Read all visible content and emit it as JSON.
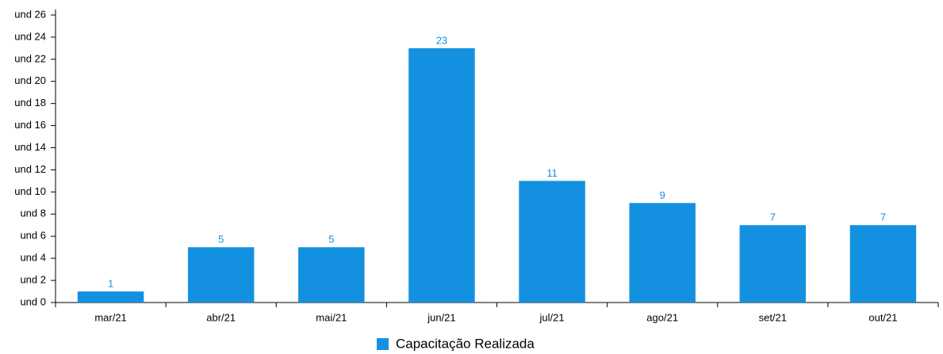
{
  "chart_data": {
    "type": "bar",
    "categories": [
      "mar/21",
      "abr/21",
      "mai/21",
      "jun/21",
      "jul/21",
      "ago/21",
      "set/21",
      "out/21"
    ],
    "series": [
      {
        "name": "Capacitação Realizada",
        "color": "#1391e0",
        "values": [
          1,
          5,
          5,
          23,
          11,
          9,
          7,
          7
        ]
      }
    ],
    "ylim": [
      0,
      26.5
    ],
    "yticks": [
      {
        "value": 0,
        "label": "und 0"
      },
      {
        "value": 2,
        "label": "und 2"
      },
      {
        "value": 4,
        "label": "und 4"
      },
      {
        "value": 6,
        "label": "und 6"
      },
      {
        "value": 8,
        "label": "und 8"
      },
      {
        "value": 10,
        "label": "und 10"
      },
      {
        "value": 12,
        "label": "und 12"
      },
      {
        "value": 14,
        "label": "und 14"
      },
      {
        "value": 16,
        "label": "und 16"
      },
      {
        "value": 18,
        "label": "und 18"
      },
      {
        "value": 20,
        "label": "und 20"
      },
      {
        "value": 22,
        "label": "und 22"
      },
      {
        "value": 24,
        "label": "und 24"
      },
      {
        "value": 26,
        "label": "und 26"
      }
    ],
    "legend": "bottom"
  }
}
